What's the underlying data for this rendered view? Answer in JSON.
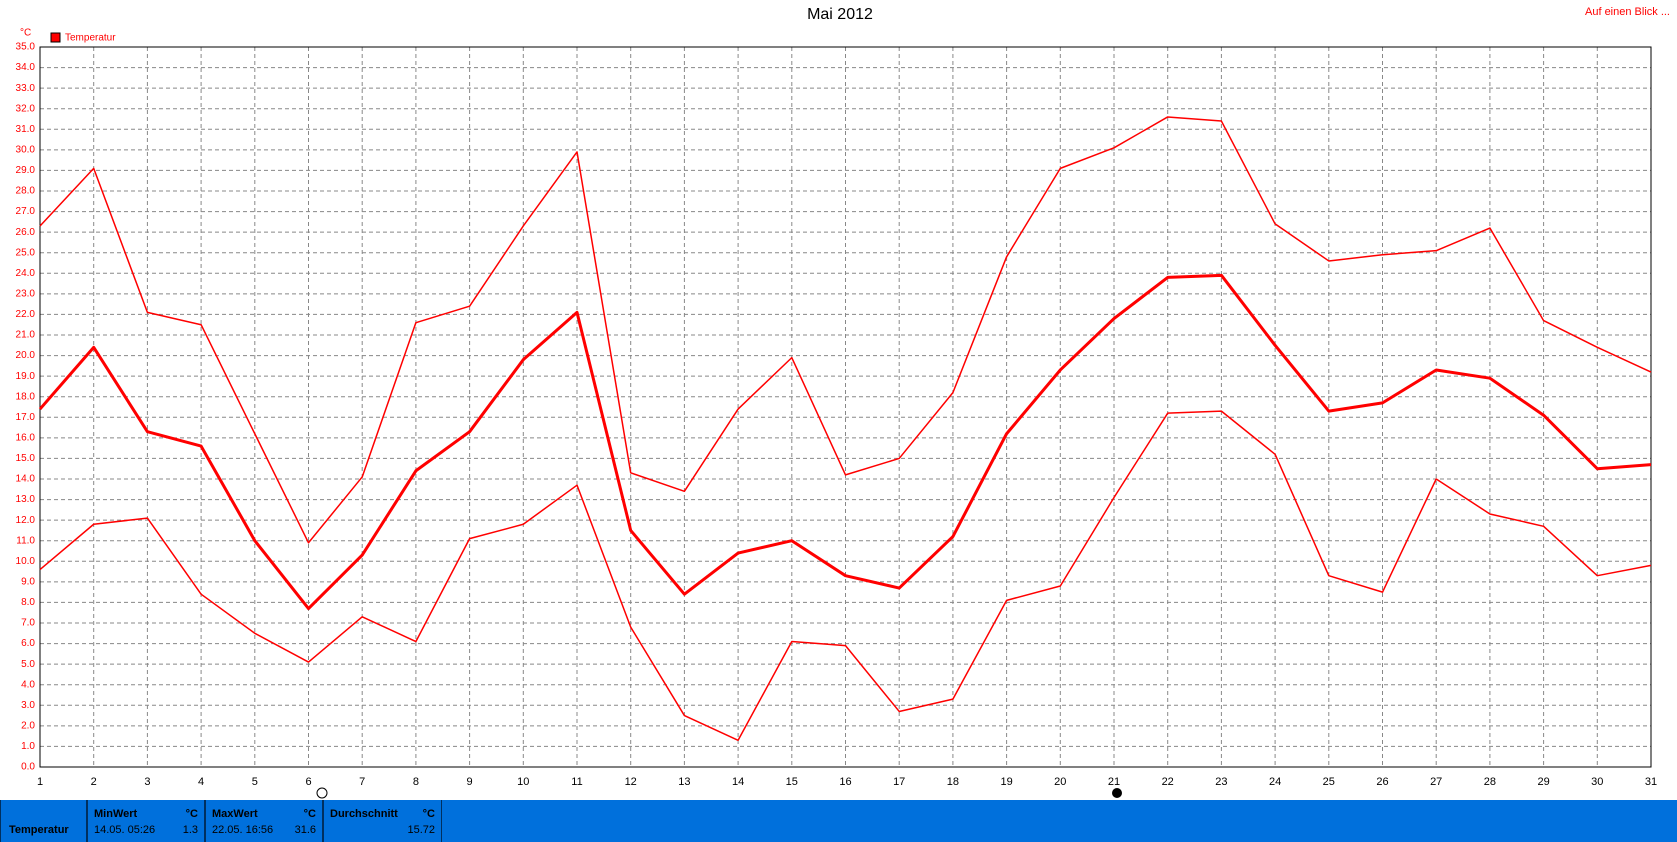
{
  "chart_data": {
    "type": "line",
    "title": "Mai 2012",
    "link": "Auf einen Blick ...",
    "y_unit": "°C",
    "legend": "Temperatur",
    "legend_color": "#ff0000",
    "x": [
      1,
      2,
      3,
      4,
      5,
      6,
      7,
      8,
      9,
      10,
      11,
      12,
      13,
      14,
      15,
      16,
      17,
      18,
      19,
      20,
      21,
      22,
      23,
      24,
      25,
      26,
      27,
      28,
      29,
      30,
      31
    ],
    "xlim": [
      1,
      31
    ],
    "xticks": [
      1,
      2,
      3,
      4,
      5,
      6,
      7,
      8,
      9,
      10,
      11,
      12,
      13,
      14,
      15,
      16,
      17,
      18,
      19,
      20,
      21,
      22,
      23,
      24,
      25,
      26,
      27,
      28,
      29,
      30,
      31
    ],
    "ylim": [
      0,
      35
    ],
    "yticks": [
      {
        "value": 0,
        "label": "0.0"
      },
      {
        "value": 1,
        "label": "1.0"
      },
      {
        "value": 2,
        "label": "2.0"
      },
      {
        "value": 3,
        "label": "3.0"
      },
      {
        "value": 4,
        "label": "4.0"
      },
      {
        "value": 5,
        "label": "5.0"
      },
      {
        "value": 6,
        "label": "6.0"
      },
      {
        "value": 7,
        "label": "7.0"
      },
      {
        "value": 8,
        "label": "8.0"
      },
      {
        "value": 9,
        "label": "9.0"
      },
      {
        "value": 10,
        "label": "10.0"
      },
      {
        "value": 11,
        "label": "11.0"
      },
      {
        "value": 12,
        "label": "12.0"
      },
      {
        "value": 13,
        "label": "13.0"
      },
      {
        "value": 14,
        "label": "14.0"
      },
      {
        "value": 15,
        "label": "15.0"
      },
      {
        "value": 16,
        "label": "16.0"
      },
      {
        "value": 17,
        "label": "17.0"
      },
      {
        "value": 18,
        "label": "18.0"
      },
      {
        "value": 19,
        "label": "19.0"
      },
      {
        "value": 20,
        "label": "20.0"
      },
      {
        "value": 21,
        "label": "21.0"
      },
      {
        "value": 22,
        "label": "22.0"
      },
      {
        "value": 23,
        "label": "23.0"
      },
      {
        "value": 24,
        "label": "24.0"
      },
      {
        "value": 25,
        "label": "25.0"
      },
      {
        "value": 26,
        "label": "26.0"
      },
      {
        "value": 27,
        "label": "27.0"
      },
      {
        "value": 28,
        "label": "28.0"
      },
      {
        "value": 29,
        "label": "29.0"
      },
      {
        "value": 30,
        "label": "30.0"
      },
      {
        "value": 31,
        "label": "31.0"
      },
      {
        "value": 32,
        "label": "32.0"
      },
      {
        "value": 33,
        "label": "33.0"
      },
      {
        "value": 34,
        "label": "34.0"
      },
      {
        "value": 35,
        "label": "35.0"
      }
    ],
    "grid": true,
    "series": [
      {
        "color": "#ff0000",
        "line_width": 1.5,
        "values": [
          26.3,
          29.1,
          22.1,
          21.5,
          16.2,
          10.9,
          14.1,
          21.6,
          22.4,
          26.3,
          29.9,
          14.3,
          13.4,
          17.4,
          19.9,
          14.2,
          15.0,
          18.2,
          24.8,
          29.1,
          30.1,
          31.6,
          31.4,
          26.4,
          24.6,
          24.9,
          25.1,
          26.2,
          21.7,
          20.4,
          19.2
        ]
      },
      {
        "color": "#ff0000",
        "line_width": 3,
        "values": [
          17.4,
          20.4,
          16.3,
          15.6,
          11.0,
          7.7,
          10.3,
          14.4,
          16.3,
          19.8,
          22.1,
          11.5,
          8.4,
          10.4,
          11.0,
          9.3,
          8.7,
          11.2,
          16.2,
          19.3,
          21.8,
          23.8,
          23.9,
          20.5,
          17.3,
          17.7,
          19.3,
          18.9,
          17.1,
          14.5,
          14.7
        ]
      },
      {
        "color": "#ff0000",
        "line_width": 1.5,
        "values": [
          9.6,
          11.8,
          12.1,
          8.4,
          6.5,
          5.1,
          7.3,
          6.1,
          11.1,
          11.8,
          13.7,
          6.8,
          2.5,
          1.3,
          6.1,
          5.9,
          2.7,
          3.3,
          8.1,
          8.8,
          13.1,
          17.2,
          17.3,
          15.2,
          9.3,
          8.5,
          14.0,
          12.3,
          11.7,
          9.3,
          9.8
        ]
      }
    ]
  },
  "summary": {
    "row_label": "Temperatur",
    "min": {
      "header": "MinWert",
      "unit": "°C",
      "time": "14.05.  05:26",
      "value": "1.3"
    },
    "max": {
      "header": "MaxWert",
      "unit": "°C",
      "time": "22.05.  16:56",
      "value": "31.6"
    },
    "avg": {
      "header": "Durchschnitt",
      "unit": "°C",
      "value": "15.72"
    }
  }
}
